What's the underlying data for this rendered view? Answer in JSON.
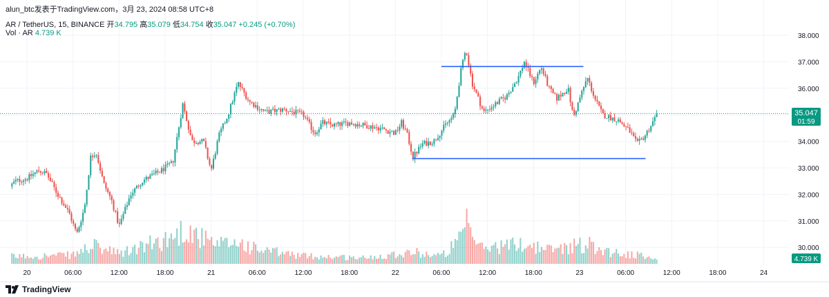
{
  "byline": "alun_btc发表于TradingView.com，3月 23, 2024 08:58 UTC+8",
  "legend": {
    "symbol": "AR / TetherUS, 15, BINANCE",
    "open_label": "开",
    "open": "34.795",
    "high_label": "高",
    "high": "35.079",
    "low_label": "低",
    "low": "34.754",
    "close_label": "收",
    "close": "35.047",
    "change": "+0.245 (+0.70%)",
    "vol_label": "Vol · AR",
    "vol_value": "4.739 K"
  },
  "price_badge": {
    "price": "35.047",
    "countdown": "01:59"
  },
  "volume_badge": "4.739 K",
  "brand": "TradingView",
  "colors": {
    "up": "#26a69a",
    "down": "#ef5350",
    "line": "#2962ff",
    "grid": "#f0f3fa"
  },
  "chart_data": {
    "type": "candlestick",
    "title": "",
    "y_ticks": [
      "38.000",
      "37.000",
      "36.000",
      "35.000",
      "34.000",
      "33.000",
      "32.000",
      "31.000",
      "30.000"
    ],
    "y_tick_values": [
      38,
      37,
      36,
      35,
      34,
      33,
      32,
      31,
      30
    ],
    "ylim": [
      29.7,
      38.5
    ],
    "x_ticks": [
      {
        "t": 0,
        "label": "20"
      },
      {
        "t": 6,
        "label": "06:00"
      },
      {
        "t": 12,
        "label": "12:00"
      },
      {
        "t": 18,
        "label": "18:00"
      },
      {
        "t": 24,
        "label": "21"
      },
      {
        "t": 30,
        "label": "06:00"
      },
      {
        "t": 36,
        "label": "12:00"
      },
      {
        "t": 42,
        "label": "18:00"
      },
      {
        "t": 48,
        "label": "22"
      },
      {
        "t": 54,
        "label": "06:00"
      },
      {
        "t": 60,
        "label": "12:00"
      },
      {
        "t": 66,
        "label": "18:00"
      },
      {
        "t": 72,
        "label": "23"
      },
      {
        "t": 78,
        "label": "06:00"
      },
      {
        "t": 84,
        "label": "12:00"
      },
      {
        "t": 90,
        "label": "18:00"
      },
      {
        "t": 96,
        "label": "24"
      }
    ],
    "key_points": [
      {
        "t": -2.2,
        "p": 32.3
      },
      {
        "t": -1.5,
        "p": 32.5
      },
      {
        "t": 0,
        "p": 32.6
      },
      {
        "t": 1.5,
        "p": 32.9
      },
      {
        "t": 2.5,
        "p": 32.8
      },
      {
        "t": 4,
        "p": 32.0
      },
      {
        "t": 5.5,
        "p": 31.3
      },
      {
        "t": 6.5,
        "p": 30.5
      },
      {
        "t": 7.5,
        "p": 31.5
      },
      {
        "t": 8.3,
        "p": 33.4
      },
      {
        "t": 9,
        "p": 33.6
      },
      {
        "t": 10,
        "p": 32.4
      },
      {
        "t": 11,
        "p": 31.8
      },
      {
        "t": 12,
        "p": 30.8
      },
      {
        "t": 13.5,
        "p": 32.0
      },
      {
        "t": 15,
        "p": 32.5
      },
      {
        "t": 17.5,
        "p": 32.9
      },
      {
        "t": 19,
        "p": 33.2
      },
      {
        "t": 20.3,
        "p": 35.4
      },
      {
        "t": 21.5,
        "p": 34.0
      },
      {
        "t": 23,
        "p": 34.0
      },
      {
        "t": 24,
        "p": 32.9
      },
      {
        "t": 25,
        "p": 34.2
      },
      {
        "t": 26.2,
        "p": 35.0
      },
      {
        "t": 27.5,
        "p": 36.2
      },
      {
        "t": 29,
        "p": 35.5
      },
      {
        "t": 31,
        "p": 35.1
      },
      {
        "t": 33.5,
        "p": 35.2
      },
      {
        "t": 36,
        "p": 35.0
      },
      {
        "t": 37.5,
        "p": 34.3
      },
      {
        "t": 38.5,
        "p": 34.7
      },
      {
        "t": 40,
        "p": 34.6
      },
      {
        "t": 42,
        "p": 34.7
      },
      {
        "t": 44,
        "p": 34.6
      },
      {
        "t": 46,
        "p": 34.5
      },
      {
        "t": 48,
        "p": 34.3
      },
      {
        "t": 48.8,
        "p": 34.7
      },
      {
        "t": 49.5,
        "p": 34.3
      },
      {
        "t": 50.3,
        "p": 33.4
      },
      {
        "t": 51.5,
        "p": 33.9
      },
      {
        "t": 53,
        "p": 34.0
      },
      {
        "t": 54.5,
        "p": 34.6
      },
      {
        "t": 55.7,
        "p": 35.0
      },
      {
        "t": 56.5,
        "p": 36.6
      },
      {
        "t": 57.2,
        "p": 37.5
      },
      {
        "t": 58,
        "p": 36.2
      },
      {
        "t": 59.5,
        "p": 35.1
      },
      {
        "t": 61,
        "p": 35.4
      },
      {
        "t": 62.5,
        "p": 35.7
      },
      {
        "t": 64,
        "p": 36.4
      },
      {
        "t": 64.8,
        "p": 37.0
      },
      {
        "t": 66,
        "p": 36.2
      },
      {
        "t": 67,
        "p": 36.8
      },
      {
        "t": 68,
        "p": 36.0
      },
      {
        "t": 69,
        "p": 35.6
      },
      {
        "t": 70.5,
        "p": 36.0
      },
      {
        "t": 71.2,
        "p": 34.9
      },
      {
        "t": 72,
        "p": 35.6
      },
      {
        "t": 73,
        "p": 36.4
      },
      {
        "t": 74,
        "p": 35.6
      },
      {
        "t": 75,
        "p": 35.0
      },
      {
        "t": 77,
        "p": 34.8
      },
      {
        "t": 78.5,
        "p": 34.4
      },
      {
        "t": 79.5,
        "p": 33.9
      },
      {
        "t": 80.5,
        "p": 34.2
      },
      {
        "t": 81.5,
        "p": 34.7
      },
      {
        "t": 82.1,
        "p": 35.05
      }
    ],
    "volume_profile": [
      {
        "t": -2.2,
        "v": 0.18
      },
      {
        "t": 6,
        "v": 0.22
      },
      {
        "t": 8.5,
        "v": 0.45
      },
      {
        "t": 12,
        "v": 0.25
      },
      {
        "t": 19.5,
        "v": 0.7
      },
      {
        "t": 20.5,
        "v": 0.9
      },
      {
        "t": 24.5,
        "v": 0.45
      },
      {
        "t": 27.5,
        "v": 0.55
      },
      {
        "t": 30,
        "v": 0.35
      },
      {
        "t": 36,
        "v": 0.2
      },
      {
        "t": 44,
        "v": 0.15
      },
      {
        "t": 50,
        "v": 0.3
      },
      {
        "t": 54,
        "v": 0.2
      },
      {
        "t": 56.5,
        "v": 0.6
      },
      {
        "t": 57.2,
        "v": 1.0
      },
      {
        "t": 59,
        "v": 0.4
      },
      {
        "t": 64.8,
        "v": 0.5
      },
      {
        "t": 68,
        "v": 0.35
      },
      {
        "t": 71,
        "v": 0.45
      },
      {
        "t": 73,
        "v": 0.5
      },
      {
        "t": 76,
        "v": 0.3
      },
      {
        "t": 80,
        "v": 0.2
      },
      {
        "t": 82.1,
        "v": 0.15
      }
    ],
    "trendlines": [
      {
        "t1": 54,
        "p1": 36.82,
        "t2": 72.5,
        "p2": 36.82
      },
      {
        "t1": 50.2,
        "p1": 33.35,
        "t2": 80.6,
        "p2": 33.35
      }
    ],
    "last_price": 35.047
  }
}
